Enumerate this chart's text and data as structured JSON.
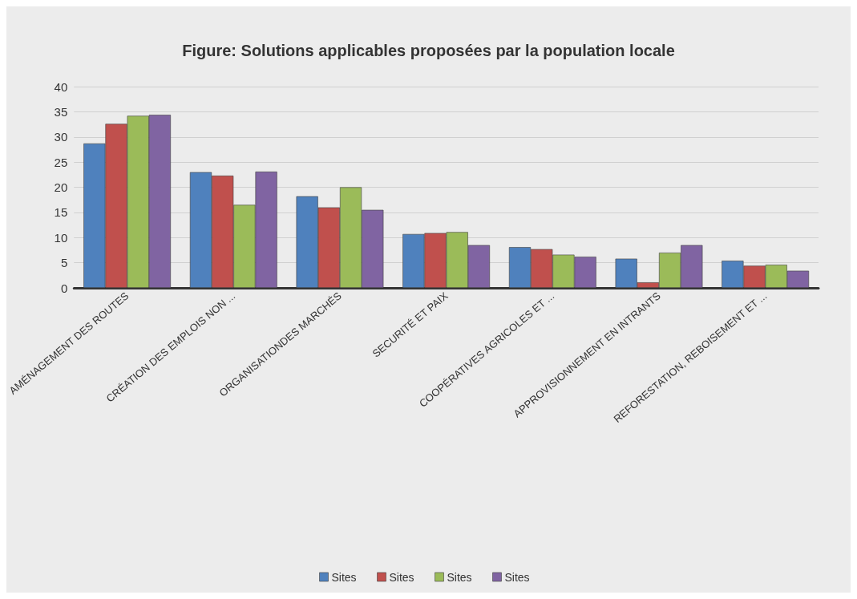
{
  "chart_data": {
    "type": "bar",
    "title": "Figure: Solutions applicables proposées par la population locale",
    "categories": [
      "AMÉNAGEMENT DES ROUTES",
      "CRÉATION DES EMPLOIS NON ...",
      "ORGANISATIONDES MARCHÉS",
      "SECURITÉ ET PAIX",
      "COOPÉRATIVES AGRICOLES ET ...",
      "APPROVISIONNEMENT EN INTRANTS",
      "REFORESTATION, REBOISEMENT ET ..."
    ],
    "series": [
      {
        "name": "Sites",
        "color": "#4f81bd",
        "values": [
          28.7,
          23,
          18.2,
          10.7,
          8.1,
          5.8,
          5.4
        ]
      },
      {
        "name": "Sites",
        "color": "#c0504d",
        "values": [
          32.6,
          22.3,
          16,
          10.9,
          7.7,
          1.1,
          4.4
        ]
      },
      {
        "name": "Sites",
        "color": "#9bbb59",
        "values": [
          34.2,
          16.5,
          20,
          11.1,
          6.6,
          7,
          4.6
        ]
      },
      {
        "name": "Sites",
        "color": "#8064a2",
        "values": [
          34.4,
          23.1,
          15.5,
          8.5,
          6.2,
          8.5,
          3.4
        ]
      }
    ],
    "ylim": [
      0,
      40
    ],
    "yticks": [
      0,
      5,
      10,
      15,
      20,
      25,
      30,
      35,
      40
    ],
    "grid": "y",
    "legend": "bottom"
  }
}
